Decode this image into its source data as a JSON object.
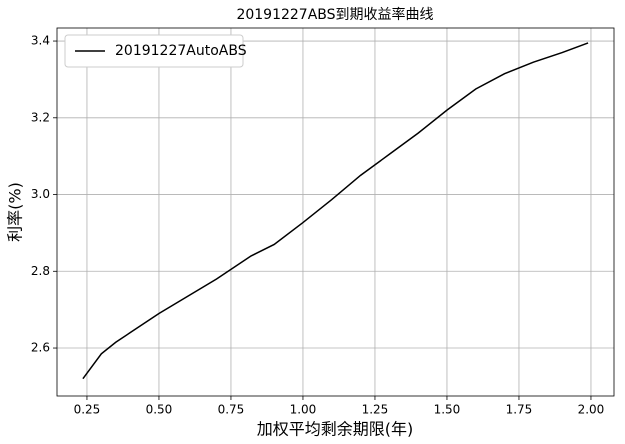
{
  "chart_data": {
    "type": "line",
    "title": "20191227ABS到期收益率曲线",
    "xlabel": "加权平均剩余期限(年)",
    "ylabel": "利率(%)",
    "x": [
      0.236,
      0.3,
      0.35,
      0.4,
      0.5,
      0.6,
      0.7,
      0.82,
      0.9,
      1.0,
      1.1,
      1.2,
      1.3,
      1.4,
      1.5,
      1.6,
      1.7,
      1.8,
      1.9,
      1.99
    ],
    "series": [
      {
        "name": "20191227AutoABS",
        "color": "#000000",
        "values": [
          2.52,
          2.585,
          2.615,
          2.64,
          2.69,
          2.735,
          2.78,
          2.84,
          2.87,
          2.927,
          2.987,
          3.05,
          3.105,
          3.16,
          3.22,
          3.275,
          3.315,
          3.345,
          3.37,
          3.395
        ]
      }
    ],
    "xlim": [
      0.146,
      2.08
    ],
    "ylim": [
      2.475,
      3.434
    ],
    "xticks": [
      {
        "value": 0.25,
        "label": "0.25"
      },
      {
        "value": 0.5,
        "label": "0.50"
      },
      {
        "value": 0.75,
        "label": "0.75"
      },
      {
        "value": 1.0,
        "label": "1.00"
      },
      {
        "value": 1.25,
        "label": "1.25"
      },
      {
        "value": 1.5,
        "label": "1.50"
      },
      {
        "value": 1.75,
        "label": "1.75"
      },
      {
        "value": 2.0,
        "label": "2.00"
      }
    ],
    "yticks": [
      2.6,
      2.8,
      {
        "value": 3.0,
        "label": "3.0"
      },
      3.2,
      3.4
    ],
    "grid": true,
    "legend": "upper-left"
  }
}
